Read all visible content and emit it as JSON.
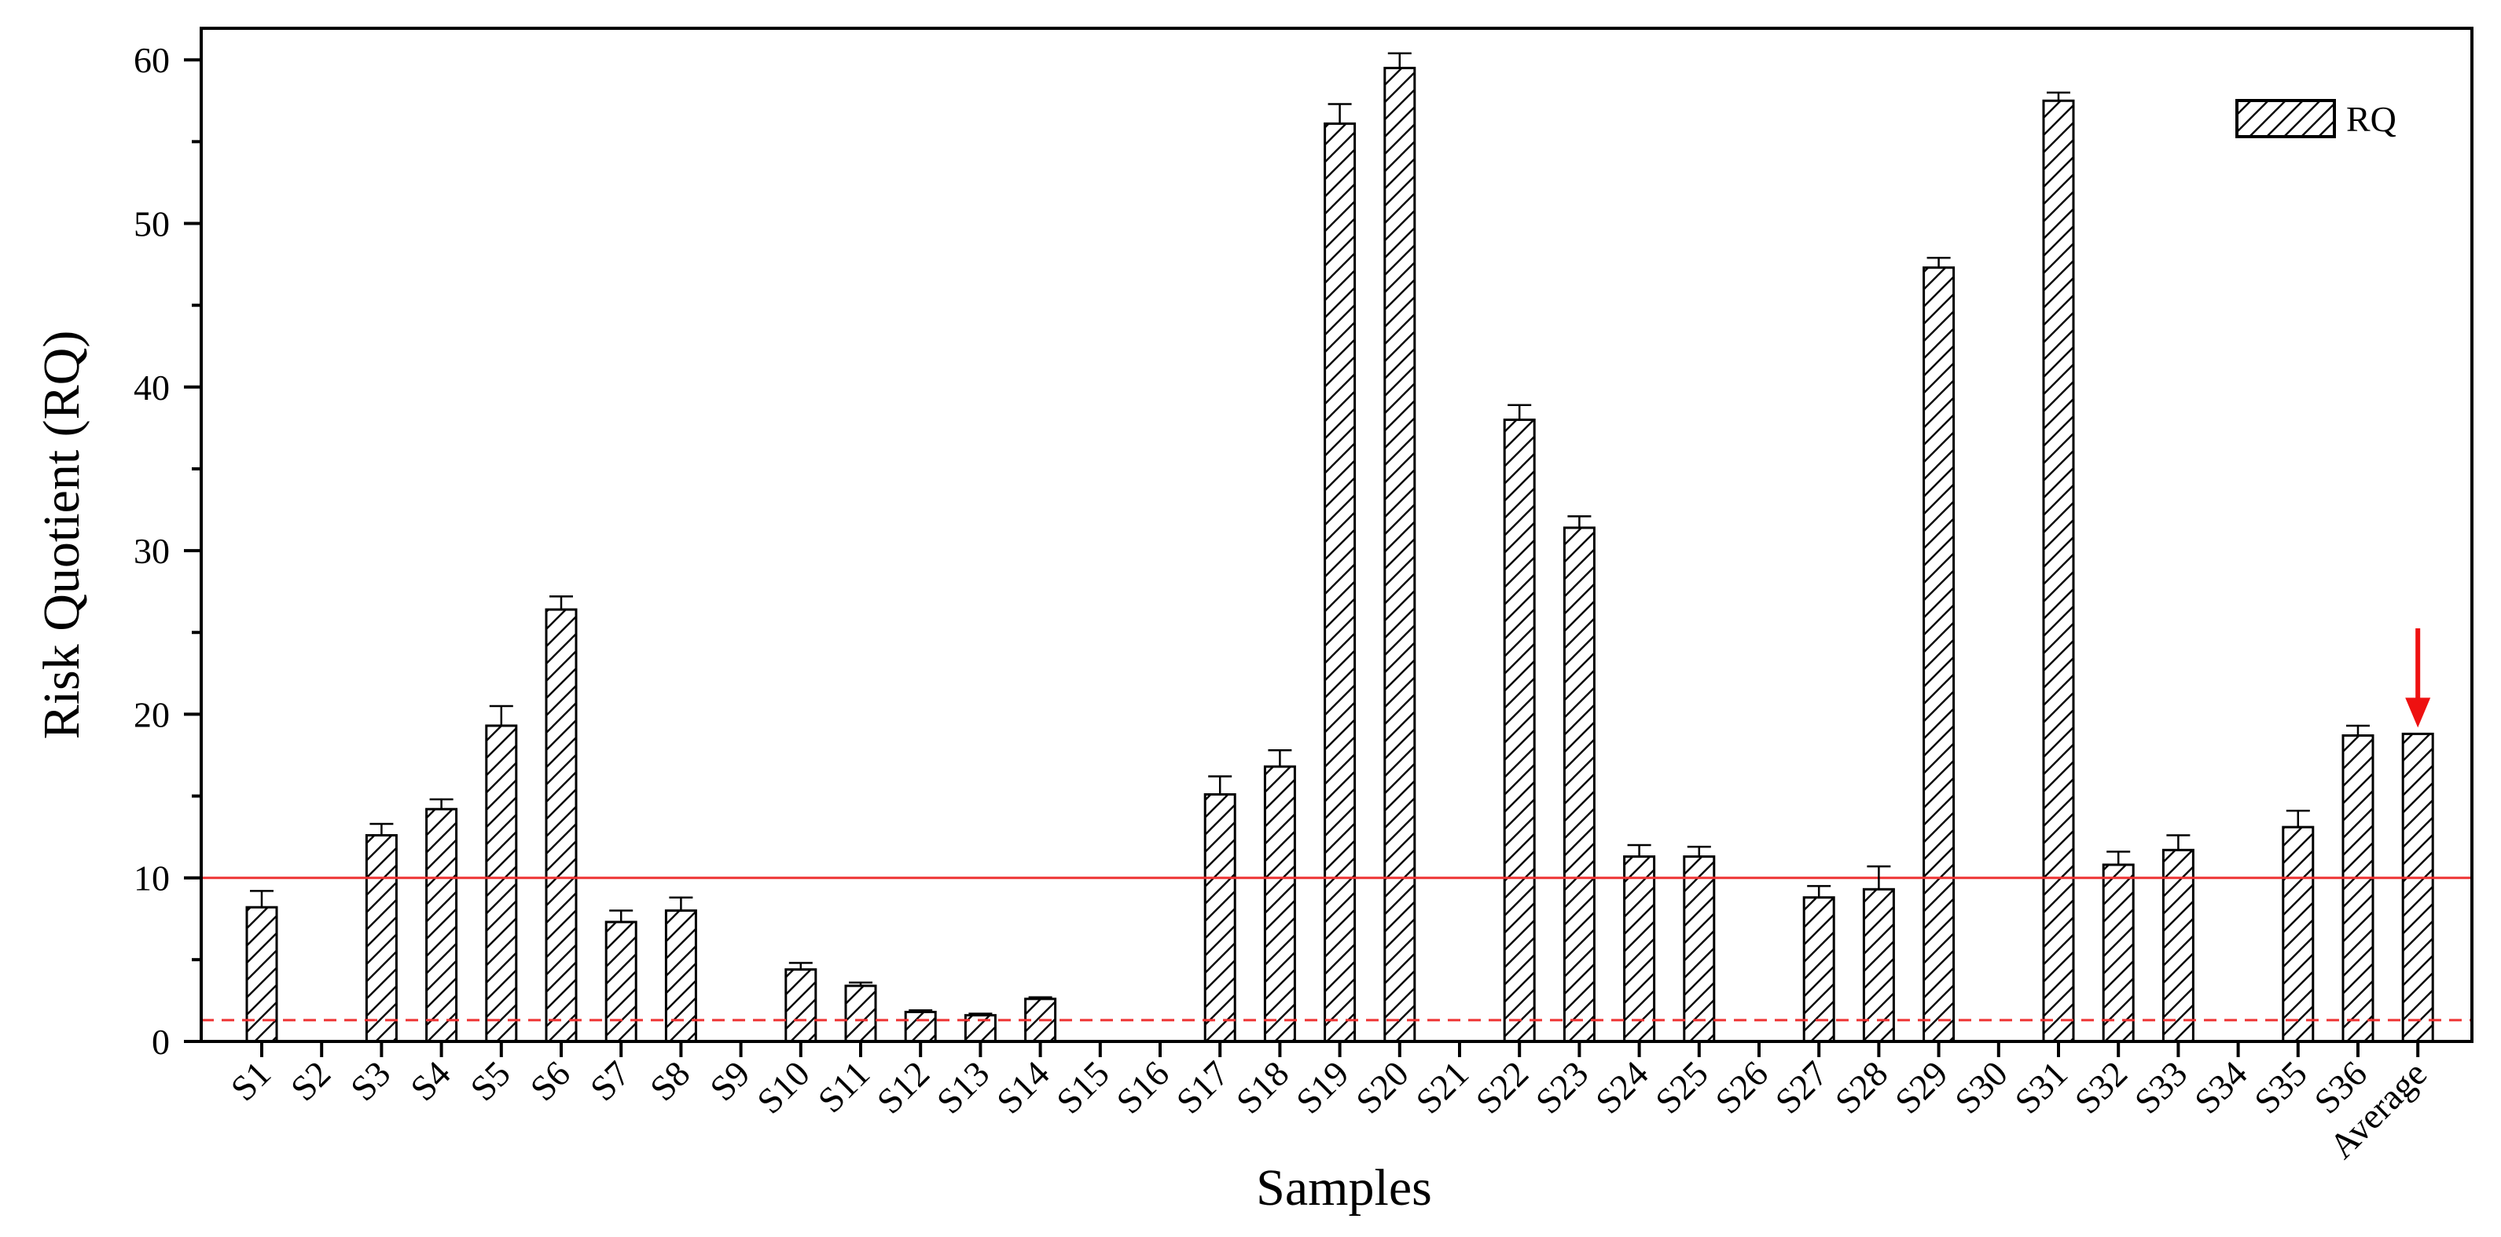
{
  "chart_data": {
    "type": "bar",
    "title": "",
    "xlabel": "Samples",
    "ylabel": "Risk Quotient (RQ)",
    "ylim": [
      0,
      62
    ],
    "yticks": [
      0,
      10,
      20,
      30,
      40,
      50,
      60
    ],
    "grid": false,
    "legend": {
      "position": "top-right",
      "entries": [
        "RQ"
      ]
    },
    "categories": [
      "S1",
      "S2",
      "S3",
      "S4",
      "S5",
      "S6",
      "S7",
      "S8",
      "S9",
      "S10",
      "S11",
      "S12",
      "S13",
      "S14",
      "S15",
      "S16",
      "S17",
      "S18",
      "S19",
      "S20",
      "S21",
      "S22",
      "S23",
      "S24",
      "S25",
      "S26",
      "S27",
      "S28",
      "S29",
      "S30",
      "S31",
      "S32",
      "S33",
      "S34",
      "S35",
      "S36",
      "Average"
    ],
    "series": [
      {
        "name": "RQ",
        "pattern": "diagonal-hatch",
        "values": [
          8.2,
          null,
          12.6,
          14.2,
          19.3,
          26.4,
          7.3,
          8.0,
          null,
          4.4,
          3.4,
          1.8,
          1.6,
          2.6,
          null,
          null,
          15.1,
          16.8,
          56.1,
          59.5,
          null,
          38.0,
          31.4,
          11.3,
          11.3,
          null,
          8.8,
          9.3,
          47.3,
          null,
          57.5,
          10.8,
          11.7,
          null,
          13.1,
          18.7,
          18.8
        ],
        "errors": [
          1.0,
          null,
          0.7,
          0.6,
          1.2,
          0.8,
          0.7,
          0.8,
          null,
          0.4,
          0.2,
          0.1,
          0.1,
          0.1,
          null,
          null,
          1.1,
          1.0,
          1.2,
          0.9,
          null,
          0.9,
          0.7,
          0.7,
          0.6,
          null,
          0.7,
          1.4,
          0.6,
          null,
          0.5,
          0.8,
          0.9,
          null,
          1.0,
          0.6,
          0.0
        ]
      }
    ],
    "reference_lines": [
      {
        "value": 10,
        "style": "solid",
        "color": "#ee3333"
      },
      {
        "value": 1.3,
        "style": "dashed",
        "color": "#ee3333"
      }
    ],
    "annotation": {
      "type": "arrow",
      "target": "Average",
      "color": "#ee1111"
    }
  }
}
